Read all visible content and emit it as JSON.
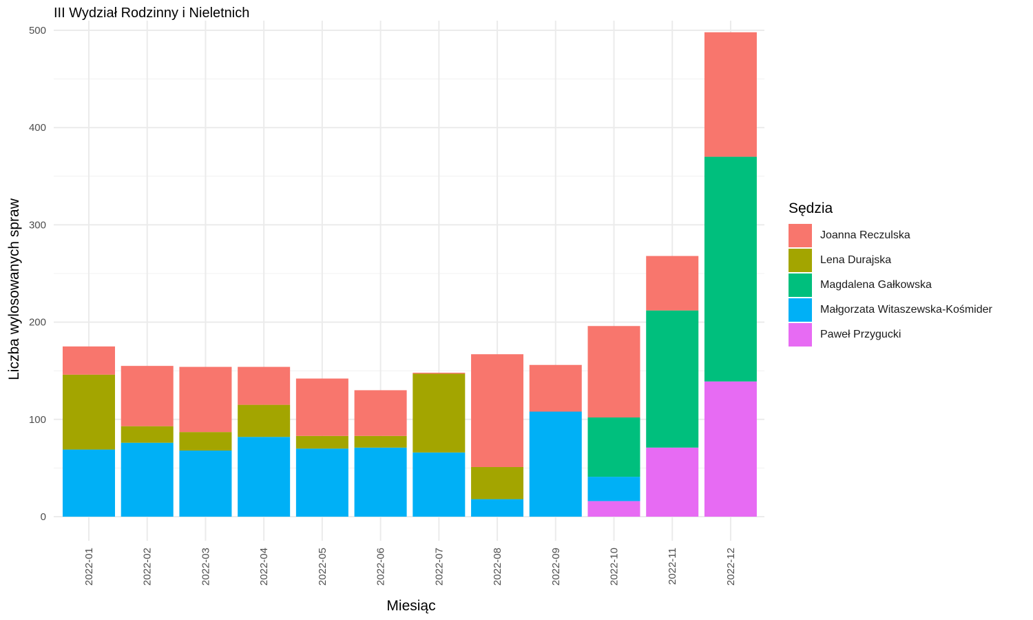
{
  "chart_data": {
    "type": "bar",
    "stacked": true,
    "title": "III Wydział Rodzinny i Nieletnich",
    "xlabel": "Miesiąc",
    "ylabel": "Liczba wylosowanych spraw",
    "ylim": [
      0,
      500
    ],
    "yticks": [
      0,
      100,
      200,
      300,
      400,
      500
    ],
    "grid": true,
    "legend_title": "Sędzia",
    "legend_position": "right",
    "categories": [
      "2022-01",
      "2022-02",
      "2022-03",
      "2022-04",
      "2022-05",
      "2022-06",
      "2022-07",
      "2022-08",
      "2022-09",
      "2022-10",
      "2022-11",
      "2022-12"
    ],
    "series": [
      {
        "name": "Paweł Przygucki",
        "color": "#e76bf3",
        "values": [
          0,
          0,
          0,
          0,
          0,
          0,
          0,
          0,
          0,
          16,
          71,
          139
        ]
      },
      {
        "name": "Małgorzata Witaszewska-Kośmider",
        "color": "#00b0f6",
        "values": [
          69,
          76,
          68,
          82,
          70,
          71,
          66,
          18,
          108,
          25,
          0,
          0
        ]
      },
      {
        "name": "Magdalena Gałkowska",
        "color": "#00bf7d",
        "values": [
          0,
          0,
          0,
          0,
          0,
          0,
          0,
          0,
          0,
          61,
          141,
          231
        ]
      },
      {
        "name": "Lena Durajska",
        "color": "#a3a500",
        "values": [
          77,
          17,
          19,
          33,
          13,
          12,
          81,
          33,
          0,
          0,
          0,
          0
        ]
      },
      {
        "name": "Joanna Reczulska",
        "color": "#f8766d",
        "values": [
          29,
          62,
          67,
          39,
          59,
          47,
          1,
          116,
          48,
          94,
          56,
          128
        ]
      }
    ],
    "legend_order": [
      "Joanna Reczulska",
      "Lena Durajska",
      "Magdalena Gałkowska",
      "Małgorzata Witaszewska-Kośmider",
      "Paweł Przygucki"
    ]
  }
}
